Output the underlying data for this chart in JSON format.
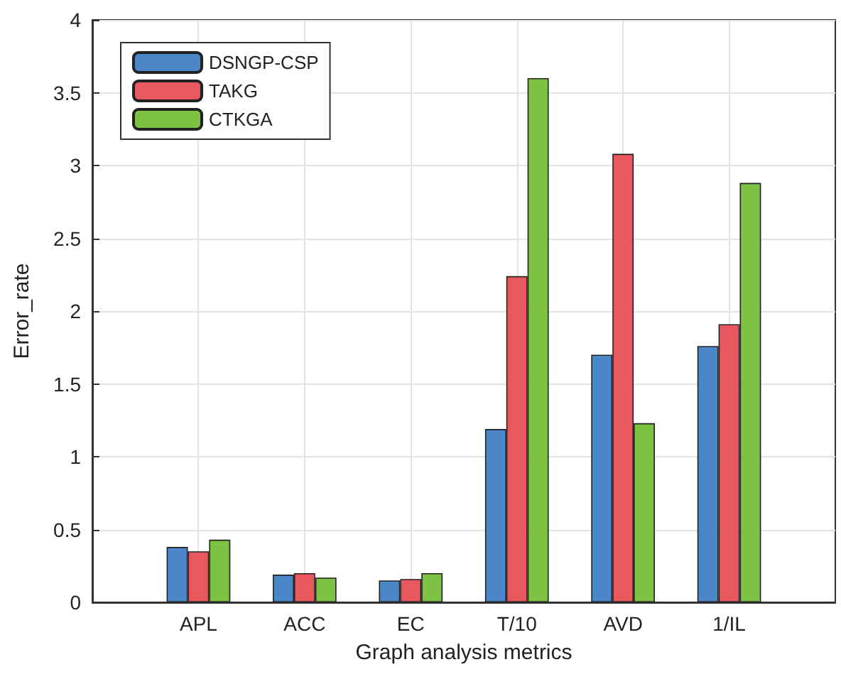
{
  "chart_data": {
    "type": "bar",
    "xlabel": "Graph analysis metrics",
    "ylabel": "Error_rate",
    "categories": [
      "APL",
      "ACC",
      "EC",
      "T/10",
      "AVD",
      "1/IL"
    ],
    "series": [
      {
        "name": "DSNGP-CSP",
        "color": "#4a86c8",
        "values": [
          0.38,
          0.19,
          0.15,
          1.19,
          1.7,
          1.76
        ]
      },
      {
        "name": "TAKG",
        "color": "#e9585e",
        "values": [
          0.35,
          0.2,
          0.16,
          2.24,
          3.08,
          1.91
        ]
      },
      {
        "name": "CTKGA",
        "color": "#7dc242",
        "values": [
          0.43,
          0.17,
          0.2,
          3.6,
          1.23,
          2.88
        ]
      }
    ],
    "ylim": [
      0,
      4
    ],
    "yticks": [
      0,
      0.5,
      1,
      1.5,
      2,
      2.5,
      3,
      3.5,
      4
    ],
    "grid": true,
    "legend": "top left"
  }
}
